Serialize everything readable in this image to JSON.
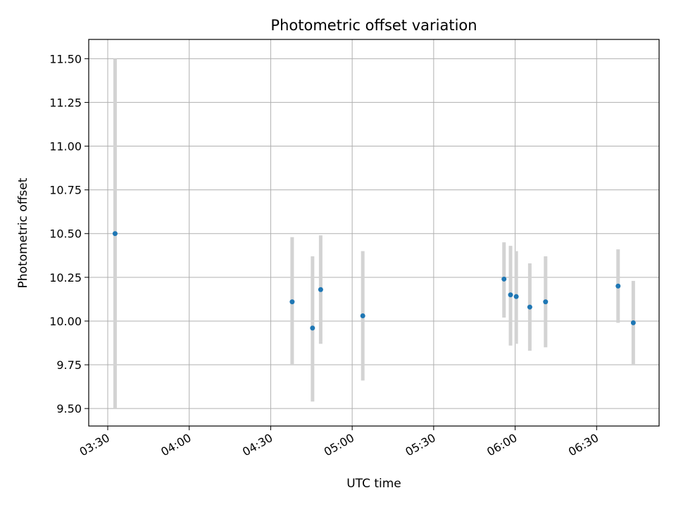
{
  "chart_data": {
    "type": "scatter",
    "title": "Photometric offset variation",
    "xlabel": "UTC time",
    "ylabel": "Photometric offset",
    "x_unit": "minutes since 00:00 UTC",
    "xlim": [
      203,
      413
    ],
    "ylim": [
      9.4,
      11.61
    ],
    "x_ticks": [
      {
        "value": 210,
        "label": "03:30"
      },
      {
        "value": 240,
        "label": "04:00"
      },
      {
        "value": 270,
        "label": "04:30"
      },
      {
        "value": 300,
        "label": "05:00"
      },
      {
        "value": 330,
        "label": "05:30"
      },
      {
        "value": 360,
        "label": "06:00"
      },
      {
        "value": 390,
        "label": "06:30"
      }
    ],
    "y_ticks": [
      {
        "value": 9.5,
        "label": "9.50"
      },
      {
        "value": 9.75,
        "label": "9.75"
      },
      {
        "value": 10.0,
        "label": "10.00"
      },
      {
        "value": 10.25,
        "label": "10.25"
      },
      {
        "value": 10.5,
        "label": "10.50"
      },
      {
        "value": 10.75,
        "label": "10.75"
      },
      {
        "value": 11.0,
        "label": "11.00"
      },
      {
        "value": 11.25,
        "label": "11.25"
      },
      {
        "value": 11.5,
        "label": "11.50"
      }
    ],
    "grid": true,
    "marker_color": "#1f77b4",
    "errorbar_color": "#d3d3d3",
    "points": [
      {
        "x": 212.7,
        "y": 10.5,
        "ylow": 9.5,
        "yhigh": 11.5
      },
      {
        "x": 277.9,
        "y": 10.11,
        "ylow": 9.75,
        "yhigh": 10.48
      },
      {
        "x": 285.4,
        "y": 9.96,
        "ylow": 9.54,
        "yhigh": 10.37
      },
      {
        "x": 288.4,
        "y": 10.18,
        "ylow": 9.87,
        "yhigh": 10.49
      },
      {
        "x": 303.9,
        "y": 10.03,
        "ylow": 9.66,
        "yhigh": 10.4
      },
      {
        "x": 355.9,
        "y": 10.24,
        "ylow": 10.02,
        "yhigh": 10.45
      },
      {
        "x": 358.3,
        "y": 10.15,
        "ylow": 9.86,
        "yhigh": 10.43
      },
      {
        "x": 360.4,
        "y": 10.14,
        "ylow": 9.87,
        "yhigh": 10.4
      },
      {
        "x": 365.4,
        "y": 10.08,
        "ylow": 9.83,
        "yhigh": 10.33
      },
      {
        "x": 371.2,
        "y": 10.11,
        "ylow": 9.85,
        "yhigh": 10.37
      },
      {
        "x": 397.9,
        "y": 10.2,
        "ylow": 9.99,
        "yhigh": 10.41
      },
      {
        "x": 403.5,
        "y": 9.99,
        "ylow": 9.75,
        "yhigh": 10.23
      }
    ]
  }
}
